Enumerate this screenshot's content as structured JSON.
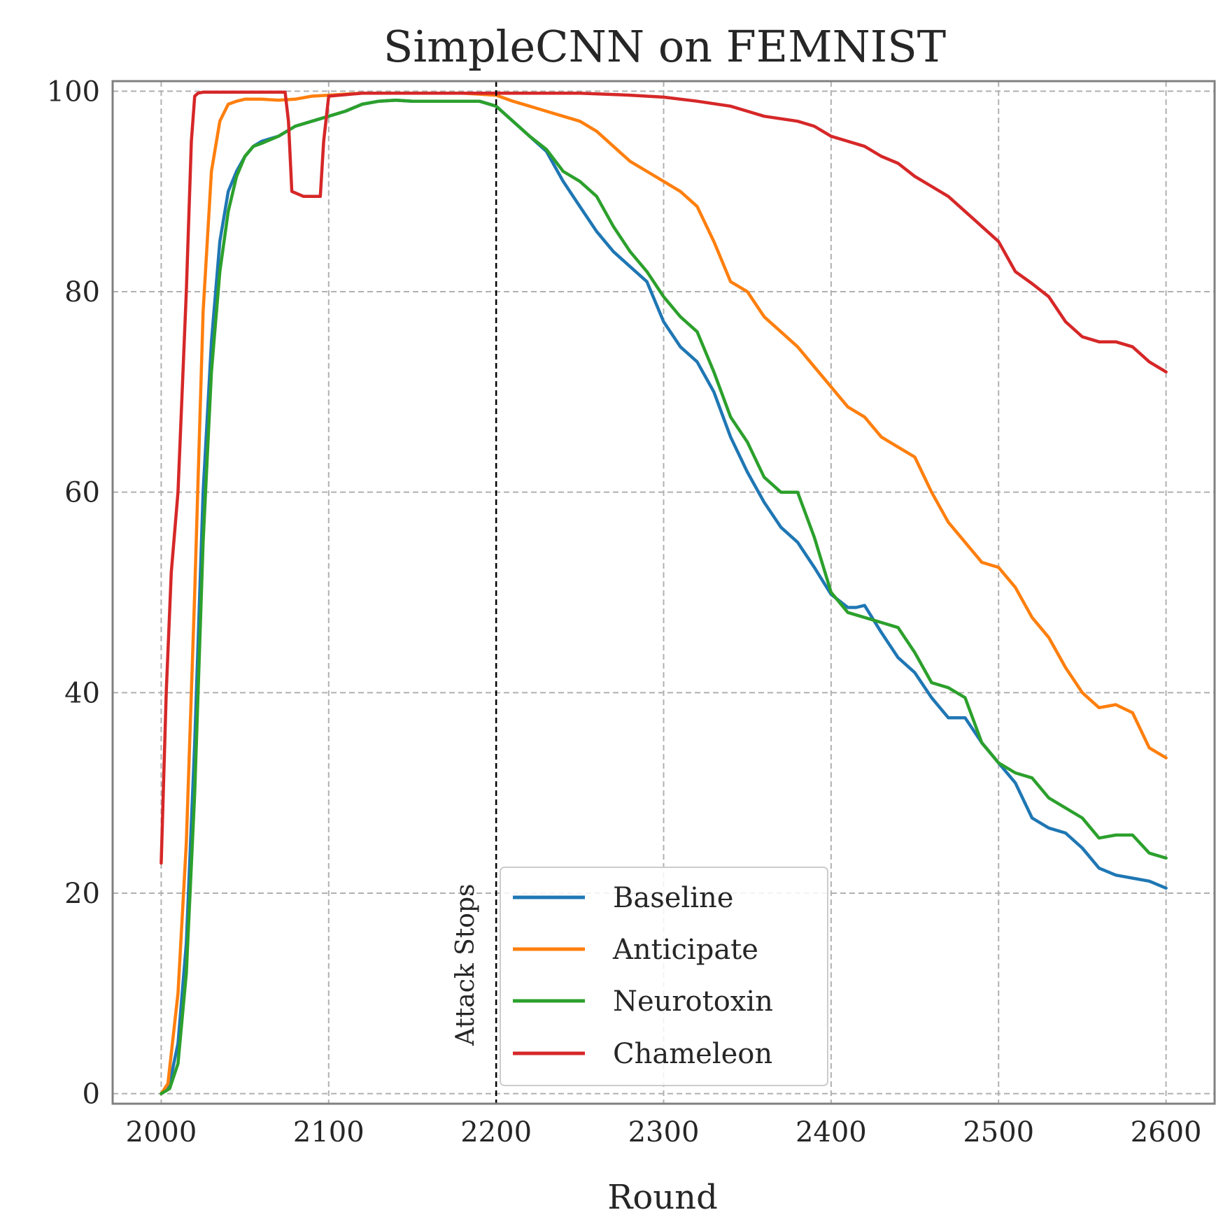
{
  "chart_data": {
    "type": "line",
    "title": "SimpleCNN on FEMNIST",
    "xlabel": "Round",
    "ylabel": "",
    "xlim": [
      1971,
      2629
    ],
    "ylim": [
      -1,
      101
    ],
    "xticks": [
      2000,
      2100,
      2200,
      2300,
      2400,
      2500,
      2600
    ],
    "yticks": [
      0,
      20,
      40,
      60,
      80,
      100
    ],
    "grid": true,
    "legend_position": "lower-center",
    "annotation": {
      "text": "Attack Stops",
      "x": 2200
    },
    "series": [
      {
        "name": "Baseline",
        "color": "#1f77b4",
        "x": [
          2000,
          2005,
          2010,
          2015,
          2020,
          2025,
          2030,
          2035,
          2040,
          2045,
          2050,
          2055,
          2060,
          2070,
          2080,
          2090,
          2100,
          2110,
          2120,
          2130,
          2140,
          2150,
          2160,
          2170,
          2180,
          2190,
          2200,
          2210,
          2220,
          2230,
          2240,
          2250,
          2260,
          2270,
          2280,
          2290,
          2300,
          2310,
          2320,
          2330,
          2340,
          2350,
          2360,
          2370,
          2380,
          2390,
          2400,
          2410,
          2415,
          2420,
          2430,
          2440,
          2450,
          2460,
          2470,
          2480,
          2490,
          2500,
          2510,
          2520,
          2530,
          2540,
          2550,
          2560,
          2570,
          2580,
          2590,
          2600
        ],
        "values": [
          0,
          1,
          5,
          15,
          35,
          60,
          75,
          85,
          90,
          92,
          93.5,
          94.5,
          95,
          95.5,
          96.5,
          97,
          97.5,
          98,
          98.7,
          99,
          99.1,
          99,
          99,
          99,
          99,
          99,
          98.5,
          97,
          95.5,
          94,
          91,
          88.5,
          86,
          84,
          82.5,
          81,
          77,
          74.5,
          73,
          70,
          65.5,
          62,
          59,
          56.5,
          55,
          52.5,
          49.8,
          48.5,
          48.5,
          48.7,
          46,
          43.5,
          42,
          39.5,
          37.5,
          37.5,
          35,
          33,
          31,
          27.5,
          26.5,
          26,
          24.5,
          22.5,
          21.8,
          21.5,
          21.2,
          20.5
        ]
      },
      {
        "name": "Anticipate",
        "color": "#ff7f0e",
        "x": [
          2000,
          2004,
          2006,
          2010,
          2015,
          2020,
          2025,
          2030,
          2035,
          2040,
          2045,
          2050,
          2060,
          2070,
          2080,
          2090,
          2100,
          2110,
          2120,
          2140,
          2160,
          2180,
          2190,
          2200,
          2210,
          2220,
          2230,
          2240,
          2250,
          2260,
          2270,
          2280,
          2290,
          2300,
          2310,
          2320,
          2330,
          2340,
          2350,
          2360,
          2370,
          2380,
          2390,
          2400,
          2410,
          2420,
          2430,
          2440,
          2450,
          2460,
          2470,
          2480,
          2490,
          2500,
          2510,
          2520,
          2530,
          2540,
          2550,
          2560,
          2570,
          2580,
          2590,
          2600
        ],
        "values": [
          0,
          1,
          4,
          10,
          25,
          50,
          78,
          92,
          97,
          98.7,
          99,
          99.2,
          99.2,
          99.1,
          99.2,
          99.5,
          99.6,
          99.7,
          99.8,
          99.8,
          99.8,
          99.8,
          99.7,
          99.6,
          99,
          98.5,
          98,
          97.5,
          97,
          96,
          94.5,
          93,
          92,
          91,
          90,
          88.5,
          85,
          81,
          80,
          77.5,
          76,
          74.5,
          72.5,
          70.5,
          68.5,
          67.5,
          65.5,
          64.5,
          63.5,
          60,
          57,
          55,
          53,
          52.5,
          50.5,
          47.5,
          45.5,
          42.5,
          40,
          38.5,
          38.8,
          38,
          34.5,
          33.5
        ]
      },
      {
        "name": "Neurotoxin",
        "color": "#2ca02c",
        "x": [
          2000,
          2005,
          2010,
          2015,
          2020,
          2025,
          2030,
          2035,
          2040,
          2045,
          2050,
          2055,
          2060,
          2070,
          2080,
          2090,
          2100,
          2110,
          2120,
          2130,
          2140,
          2150,
          2160,
          2170,
          2180,
          2190,
          2200,
          2210,
          2220,
          2230,
          2240,
          2250,
          2260,
          2270,
          2280,
          2290,
          2300,
          2310,
          2320,
          2330,
          2340,
          2350,
          2360,
          2370,
          2380,
          2390,
          2400,
          2410,
          2420,
          2430,
          2440,
          2450,
          2460,
          2470,
          2480,
          2490,
          2500,
          2510,
          2520,
          2530,
          2540,
          2550,
          2560,
          2570,
          2580,
          2590,
          2600
        ],
        "values": [
          0,
          0.5,
          3,
          12,
          30,
          55,
          72,
          82,
          88,
          91.5,
          93.5,
          94.5,
          94.8,
          95.5,
          96.5,
          97,
          97.5,
          98,
          98.7,
          99,
          99.1,
          99,
          99,
          99,
          99,
          99,
          98.5,
          97,
          95.5,
          94.2,
          92,
          91,
          89.5,
          86.5,
          84,
          82,
          79.5,
          77.5,
          76,
          72,
          67.5,
          65,
          61.5,
          60,
          60,
          55.5,
          50,
          48,
          47.5,
          47,
          46.5,
          44,
          41,
          40.5,
          39.5,
          35,
          33,
          32,
          31.5,
          29.5,
          28.5,
          27.5,
          25.5,
          25.8,
          25.8,
          24,
          23.5
        ]
      },
      {
        "name": "Chameleon",
        "color": "#d62728",
        "x": [
          2000,
          2003,
          2006,
          2010,
          2015,
          2018,
          2020,
          2022,
          2025,
          2050,
          2074,
          2076,
          2078,
          2085,
          2095,
          2097,
          2100,
          2120,
          2150,
          2200,
          2250,
          2280,
          2300,
          2320,
          2340,
          2350,
          2360,
          2380,
          2390,
          2400,
          2410,
          2420,
          2430,
          2440,
          2450,
          2460,
          2470,
          2480,
          2490,
          2500,
          2510,
          2520,
          2530,
          2540,
          2550,
          2560,
          2570,
          2580,
          2590,
          2600
        ],
        "values": [
          23,
          40,
          52,
          60,
          80,
          95,
          99.5,
          99.8,
          99.9,
          99.9,
          99.9,
          97,
          90,
          89.5,
          89.5,
          95,
          99.5,
          99.8,
          99.8,
          99.8,
          99.8,
          99.6,
          99.4,
          99,
          98.5,
          98,
          97.5,
          97,
          96.5,
          95.5,
          95,
          94.5,
          93.5,
          92.8,
          91.5,
          90.5,
          89.5,
          88,
          86.5,
          85,
          82,
          80.8,
          79.5,
          77,
          75.5,
          75,
          75,
          74.5,
          73,
          72
        ]
      }
    ]
  }
}
